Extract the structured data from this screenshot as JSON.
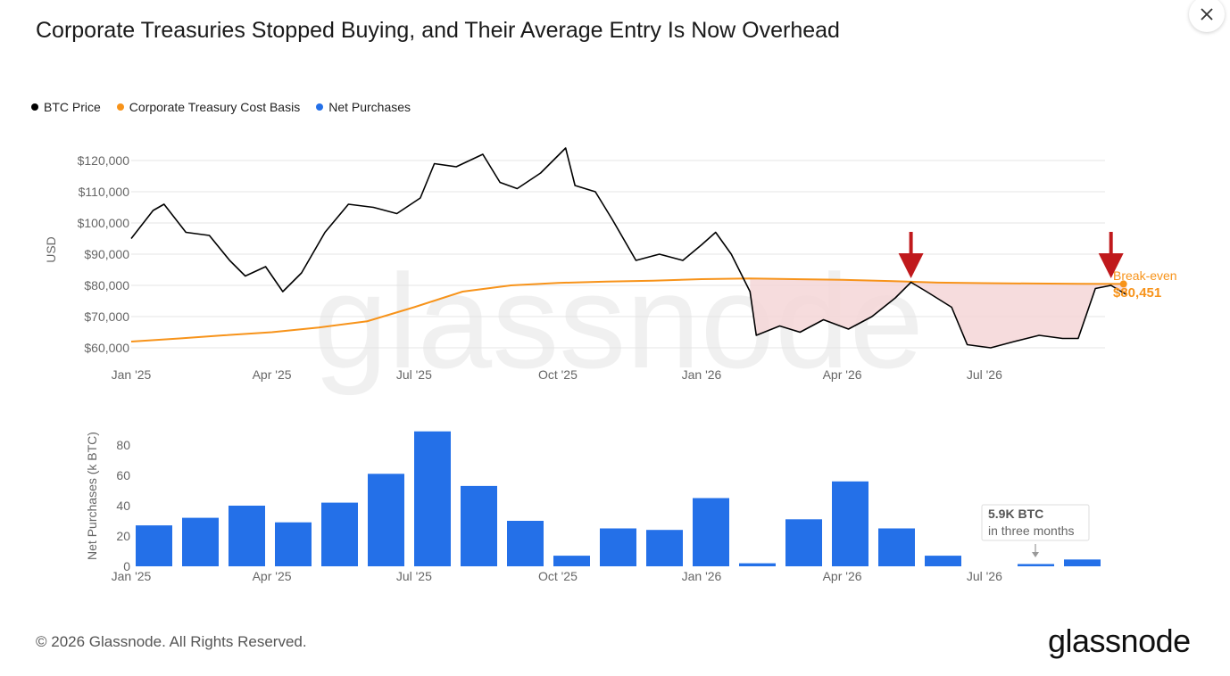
{
  "title": "Corporate Treasuries Stopped Buying, and Their Average Entry Is Now Overhead",
  "footer": "© 2026 Glassnode. All Rights Reserved.",
  "brand": "glassnode",
  "watermark": "glassnode",
  "close_icon": "close-icon",
  "colors": {
    "price": "#000000",
    "cost_basis": "#f7931a",
    "purchases": "#2470e8",
    "loss_fill": "#f4d6d7",
    "arrow": "#c0191c"
  },
  "legend": [
    {
      "label": "BTC Price",
      "color": "#000000"
    },
    {
      "label": "Corporate Treasury Cost Basis",
      "color": "#f7931a"
    },
    {
      "label": "Net Purchases",
      "color": "#2470e8"
    }
  ],
  "chart_data": [
    {
      "type": "line",
      "ylabel": "USD",
      "ylim": [
        58000,
        126000
      ],
      "y_ticks": [
        "$60,000",
        "$70,000",
        "$80,000",
        "$90,000",
        "$100,000",
        "$110,000",
        "$120,000"
      ],
      "x_ticks": [
        "Jan '25",
        "Apr '25",
        "Jul '25",
        "Oct '25",
        "Jan '26",
        "Apr '26",
        "Jul '26"
      ],
      "grid": true,
      "series": [
        {
          "name": "BTC Price",
          "color": "#000000",
          "x": [
            "2025-01-01",
            "2025-01-15",
            "2025-01-22",
            "2025-02-05",
            "2025-02-20",
            "2025-03-05",
            "2025-03-15",
            "2025-03-28",
            "2025-04-08",
            "2025-04-20",
            "2025-05-05",
            "2025-05-20",
            "2025-06-05",
            "2025-06-20",
            "2025-07-05",
            "2025-07-14",
            "2025-07-28",
            "2025-08-14",
            "2025-08-25",
            "2025-09-05",
            "2025-09-20",
            "2025-10-06",
            "2025-10-12",
            "2025-10-25",
            "2025-11-05",
            "2025-11-20",
            "2025-12-05",
            "2025-12-20",
            "2026-01-01",
            "2026-01-10",
            "2026-01-20",
            "2026-02-01",
            "2026-02-05",
            "2026-02-20",
            "2026-03-05",
            "2026-03-20",
            "2026-04-05",
            "2026-04-20",
            "2026-05-05",
            "2026-05-15",
            "2026-05-25",
            "2026-06-10",
            "2026-06-20",
            "2026-07-05",
            "2026-07-20",
            "2026-08-05",
            "2026-08-20",
            "2026-08-30",
            "2026-09-10",
            "2026-09-20",
            "2026-09-30"
          ],
          "y": [
            95000,
            104000,
            106000,
            97000,
            96000,
            88000,
            83000,
            86000,
            78000,
            84000,
            97000,
            106000,
            105000,
            103000,
            108000,
            119000,
            118000,
            122000,
            113000,
            111000,
            116000,
            124000,
            112000,
            110000,
            101000,
            88000,
            90000,
            88000,
            93000,
            97000,
            90000,
            78000,
            64000,
            67000,
            65000,
            69000,
            66000,
            70000,
            76000,
            81000,
            78000,
            73000,
            61000,
            60000,
            62000,
            64000,
            63000,
            63000,
            79000,
            80000,
            77000
          ]
        },
        {
          "name": "Corporate Treasury Cost Basis",
          "color": "#f7931a",
          "x": [
            "2025-01-01",
            "2025-02-01",
            "2025-03-01",
            "2025-04-01",
            "2025-05-01",
            "2025-06-01",
            "2025-07-01",
            "2025-08-01",
            "2025-09-01",
            "2025-10-01",
            "2025-11-01",
            "2025-12-01",
            "2026-01-01",
            "2026-02-01",
            "2026-03-01",
            "2026-04-01",
            "2026-05-01",
            "2026-06-01",
            "2026-07-01",
            "2026-08-01",
            "2026-09-01",
            "2026-09-28"
          ],
          "y": [
            62000,
            63000,
            64000,
            65000,
            66500,
            68500,
            73000,
            78000,
            80000,
            80800,
            81200,
            81500,
            82000,
            82200,
            82000,
            81800,
            81400,
            80900,
            80700,
            80600,
            80500,
            80451
          ]
        }
      ],
      "annotations": [
        {
          "label": "Break-even",
          "value": "$80,451"
        }
      ]
    },
    {
      "type": "bar",
      "ylabel": "Net Purchases (k BTC)",
      "ylim": [
        0,
        92
      ],
      "y_ticks": [
        "0",
        "20",
        "40",
        "60",
        "80"
      ],
      "x_ticks": [
        "Jan '25",
        "Apr '25",
        "Jul '25",
        "Oct '25",
        "Jan '26",
        "Apr '26",
        "Jul '26"
      ],
      "categories": [
        "Jan '25",
        "Feb '25",
        "Mar '25",
        "Apr '25",
        "May '25",
        "Jun '25",
        "Jul '25",
        "Aug '25",
        "Sep '25",
        "Oct '25",
        "Nov '25",
        "Dec '25",
        "Jan '26",
        "Feb '26",
        "Mar '26",
        "Apr '26",
        "May '26",
        "Jun '26",
        "Jul '26",
        "Aug '26",
        "Sep '26"
      ],
      "values": [
        27,
        32,
        40,
        29,
        42,
        61,
        89,
        53,
        30,
        7,
        25,
        24,
        45,
        2,
        31,
        56,
        25,
        7,
        0,
        1.5,
        4.5
      ],
      "callout": {
        "line1": "5.9K BTC",
        "line2": "in three months"
      }
    }
  ]
}
